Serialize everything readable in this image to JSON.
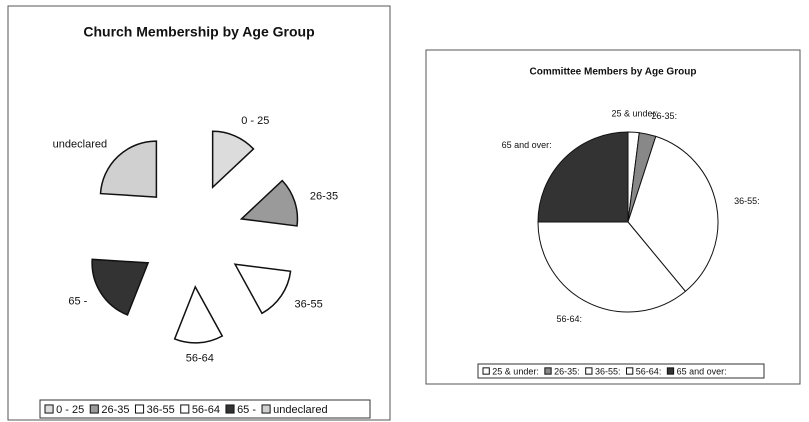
{
  "chart_data": [
    {
      "type": "pie",
      "title": "Church Membership by Age Group",
      "categories": [
        "0 - 25",
        "26-35",
        "36-55",
        "56-64",
        "65 -",
        "undeclared"
      ],
      "values": [
        13,
        14,
        15,
        14,
        20,
        24
      ],
      "colors": [
        "#dcdcdc",
        "#9a9a9a",
        "#ffffff",
        "#ffffff",
        "#333333",
        "#d0d0d0"
      ],
      "exploded": true,
      "legend": "bottom"
    },
    {
      "type": "pie",
      "title": "Committee Members by Age Group",
      "categories": [
        "25 & under:",
        "26-35:",
        "36-55:",
        "56-64:",
        "65 and over:"
      ],
      "values": [
        2,
        3,
        34,
        36,
        25
      ],
      "colors": [
        "#ffffff",
        "#888888",
        "#ffffff",
        "#ffffff",
        "#333333"
      ],
      "exploded": false,
      "legend": "bottom"
    }
  ]
}
